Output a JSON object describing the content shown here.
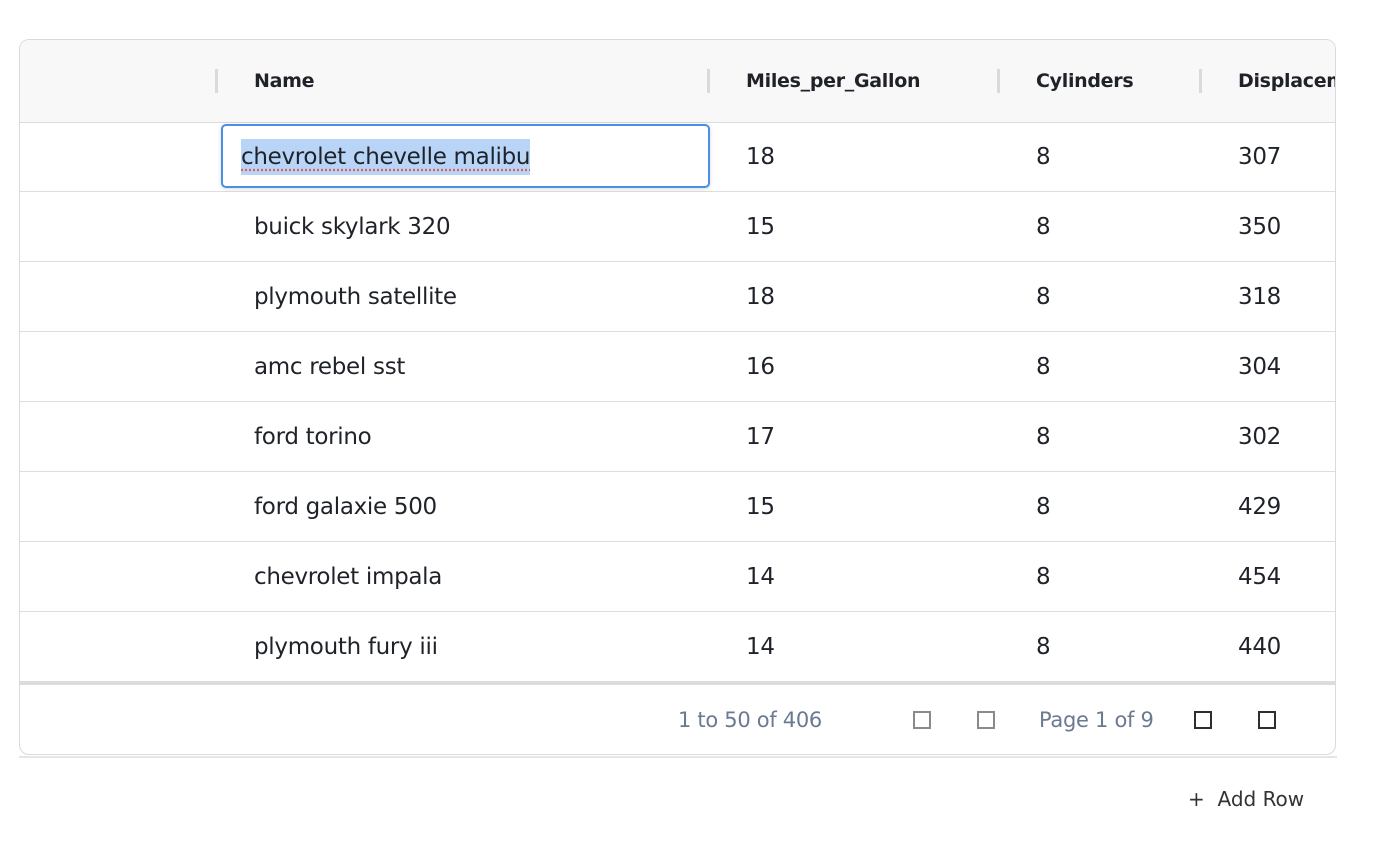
{
  "columns": [
    "",
    "Name",
    "Miles_per_Gallon",
    "Cylinders",
    "Displacement"
  ],
  "rows": [
    [
      "chevrolet chevelle malibu",
      "18",
      "8",
      "307"
    ],
    [
      "buick skylark 320",
      "15",
      "8",
      "350"
    ],
    [
      "plymouth satellite",
      "18",
      "8",
      "318"
    ],
    [
      "amc rebel sst",
      "16",
      "8",
      "304"
    ],
    [
      "ford torino",
      "17",
      "8",
      "302"
    ],
    [
      "ford galaxie 500",
      "15",
      "8",
      "429"
    ],
    [
      "chevrolet impala",
      "14",
      "8",
      "454"
    ],
    [
      "plymouth fury iii",
      "14",
      "8",
      "440"
    ]
  ],
  "editing_cell": {
    "row": 0,
    "column": "Name",
    "value": "chevrolet chevelle malibu"
  },
  "footer": {
    "range": "1 to 50 of 406",
    "page": "Page 1 of 9",
    "buttons": [
      "first-page-icon",
      "previous-page-icon",
      "next-page-icon",
      "last-page-icon"
    ]
  },
  "add_row": {
    "icon": "+",
    "label": "Add Row"
  },
  "colors": {
    "accent": "#4a90e2",
    "selection": "#b8d5f8",
    "footer_text": "#6b7a90"
  }
}
